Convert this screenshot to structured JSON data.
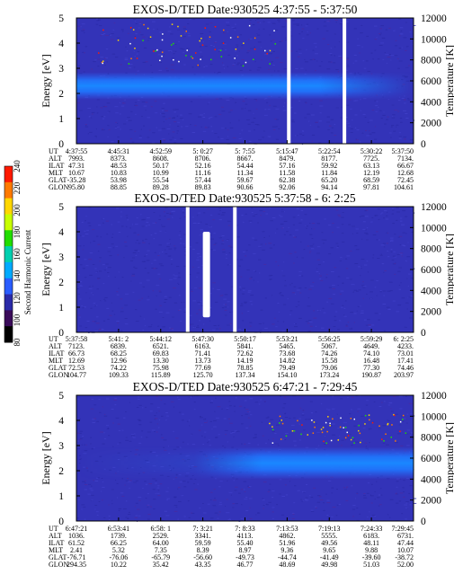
{
  "chart_data": {
    "type": "heatmap",
    "colorbar": {
      "label": "Second Harmonic Current",
      "ticks": [
        "240",
        "220",
        "200",
        "180",
        "160",
        "140",
        "120",
        "100",
        "80"
      ],
      "colors": [
        "#ff1a00",
        "#ff7a00",
        "#ffd700",
        "#c8ff00",
        "#22dd00",
        "#00d0b0",
        "#00aaff",
        "#2a5dff",
        "#2a2aa8",
        "#3a0b5a",
        "#000000"
      ]
    },
    "panels": [
      {
        "title": "EXOS-D/TED   Date:930525  4:37:55 - 5:37:50",
        "ylabel": "Energy [eV]",
        "y2label": "Temperature [K]",
        "ylim": [
          0,
          5
        ],
        "y2lim": [
          0,
          12000
        ],
        "yticks": [
          "0",
          "1",
          "2",
          "3",
          "4",
          "5"
        ],
        "y2ticks": [
          "0",
          "2000",
          "4000",
          "6000",
          "8000",
          "10000",
          "12000"
        ],
        "band": {
          "center": 2.3,
          "width": 1.1,
          "fade_end": 0.78
        },
        "gaps": [
          0.63,
          0.795
        ],
        "table_labels": [
          "UT",
          "ALT",
          "ILAT",
          "MLT",
          "GLAT",
          "GLON"
        ],
        "columns": [
          [
            "4:37:55",
            "7993.",
            "47.31",
            "10.67",
            "-35.28",
            "95.80"
          ],
          [
            "4:45:31",
            "8373.",
            "48.53",
            "10.83",
            "53.98",
            "88.85"
          ],
          [
            "4:52:59",
            "8608.",
            "50.17",
            "10.99",
            "55.54",
            "89.28"
          ],
          [
            "5: 0:27",
            "8706.",
            "52.16",
            "11.16",
            "57.44",
            "89.83"
          ],
          [
            "5: 7:55",
            "8667.",
            "54.44",
            "11.34",
            "59.67",
            "90.66"
          ],
          [
            "5:15:47",
            "8479.",
            "57.16",
            "11.58",
            "62.38",
            "92.06"
          ],
          [
            "5:22:54",
            "8177.",
            "59.92",
            "11.84",
            "65.20",
            "94.14"
          ],
          [
            "5:30:22",
            "7725.",
            "63.13",
            "12.19",
            "68.59",
            "97.81"
          ],
          [
            "5:37:50",
            "7134.",
            "66.67",
            "12.68",
            "72.45",
            "104.61"
          ]
        ]
      },
      {
        "title": "EXOS-D/TED   Date:930525  5:37:58 - 6: 2:25",
        "ylabel": "Energy [eV]",
        "y2label": "Temperature [K]",
        "ylim": [
          0,
          5
        ],
        "y2lim": [
          0,
          12000
        ],
        "yticks": [
          "0",
          "1",
          "2",
          "3",
          "4",
          "5"
        ],
        "y2ticks": [
          "0",
          "2000",
          "4000",
          "6000",
          "8000",
          "10000",
          "12000"
        ],
        "gaps": [
          0.33,
          0.47
        ],
        "table_labels": [
          "UT",
          "ALT",
          "ILAT",
          "MLT",
          "GLAT",
          "GLON"
        ],
        "columns": [
          [
            "5:37:58",
            "7123.",
            "66.73",
            "12.69",
            "72.53",
            "104.77"
          ],
          [
            "5:41: 2",
            "6839.",
            "68.25",
            "12.96",
            "74.22",
            "109.33"
          ],
          [
            "5:44:12",
            "6521.",
            "69.83",
            "13.30",
            "75.98",
            "115.89"
          ],
          [
            "5:47:30",
            "6163.",
            "71.41",
            "13.73",
            "77.69",
            "125.70"
          ],
          [
            "5:50:17",
            "5841.",
            "72.62",
            "14.19",
            "78.85",
            "137.34"
          ],
          [
            "5:53:21",
            "5465.",
            "73.68",
            "14.82",
            "79.49",
            "154.10"
          ],
          [
            "5:56:25",
            "5067.",
            "74.26",
            "15.58",
            "79.06",
            "173.24"
          ],
          [
            "5:59:29",
            "4649.",
            "74.10",
            "16.48",
            "77.30",
            "190.87"
          ],
          [
            "6: 2:25",
            "4233.",
            "73.01",
            "17.41",
            "74.46",
            "203.97"
          ]
        ]
      },
      {
        "title": "EXOS-D/TED   Date:930525  6:47:21 - 7:29:45",
        "ylabel": "Energy [eV]",
        "y2label": "Temperature [K]",
        "ylim": [
          0,
          5
        ],
        "y2lim": [
          0,
          12000
        ],
        "yticks": [
          "0",
          "1",
          "2",
          "3",
          "4",
          "5"
        ],
        "y2ticks": [
          "0",
          "2000",
          "4000",
          "6000",
          "8000",
          "10000",
          "12000"
        ],
        "band": {
          "center": 2.3,
          "width": 1.3,
          "fade_start": 0.35
        },
        "gaps": [],
        "table_labels": [
          "UT",
          "ALT",
          "ILAT",
          "MLT",
          "GLAT",
          "GLON"
        ],
        "columns": [
          [
            "6:47:21",
            "1036.",
            "61.52",
            "2.41",
            "-76.71",
            "294.35"
          ],
          [
            "6:53:41",
            "1739.",
            "66.25",
            "5.32",
            "-76.06",
            "10.22"
          ],
          [
            "6:58: 1",
            "2529.",
            "64.00",
            "7.35",
            "-65.79",
            "35.42"
          ],
          [
            "7: 3:21",
            "3341.",
            "59.59",
            "8.39",
            "-56.60",
            "43.35"
          ],
          [
            "7: 8:33",
            "4113.",
            "55.40",
            "8.97",
            "-49.73",
            "46.77"
          ],
          [
            "7:13:53",
            "4862.",
            "51.96",
            "9.36",
            "-44.74",
            "48.69"
          ],
          [
            "7:19:13",
            "5555.",
            "49.56",
            "9.65",
            "-41.49",
            "49.98"
          ],
          [
            "7:24:33",
            "6183.",
            "48.11",
            "9.88",
            "-39.60",
            "51.03"
          ],
          [
            "7:29:45",
            "6731.",
            "47.44",
            "10.07",
            "-38.72",
            "52.00"
          ]
        ]
      }
    ]
  }
}
